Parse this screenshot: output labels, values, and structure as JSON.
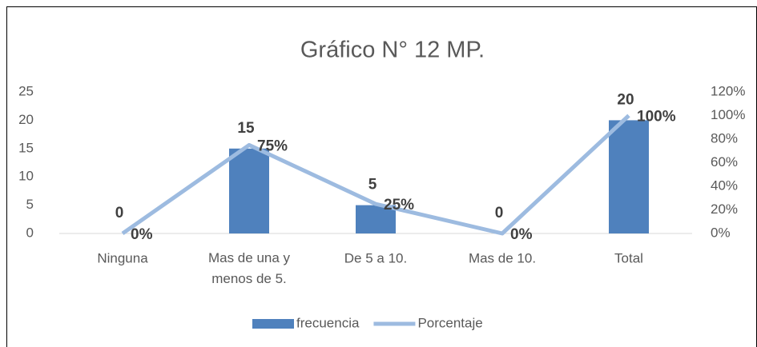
{
  "chart_data": {
    "type": "bar_line",
    "title": "Gráfico N° 12 MP.",
    "categories": [
      "Ninguna",
      "Mas de una y menos de 5.",
      "De 5 a 10.",
      "Mas de 10.",
      "Total"
    ],
    "series": [
      {
        "name": "frecuencia",
        "type": "bar",
        "color": "#4f81bd",
        "values": [
          0,
          15,
          5,
          0,
          20
        ]
      },
      {
        "name": "Porcentaje",
        "type": "line",
        "axis": "y2",
        "color": "#9dbbe0",
        "values": [
          0,
          75,
          25,
          0,
          100
        ],
        "value_labels": [
          "0%",
          "75%",
          "25%",
          "0%",
          "100%"
        ]
      }
    ],
    "ylim": [
      0,
      25
    ],
    "yticks": [
      0,
      5,
      10,
      15,
      20,
      25
    ],
    "y2lim": [
      0,
      120
    ],
    "y2ticks": [
      {
        "value": 0,
        "label": "0%"
      },
      {
        "value": 20,
        "label": "20%"
      },
      {
        "value": 40,
        "label": "40%"
      },
      {
        "value": 60,
        "label": "60%"
      },
      {
        "value": 80,
        "label": "80%"
      },
      {
        "value": 100,
        "label": "100%"
      },
      {
        "value": 120,
        "label": "120%"
      }
    ],
    "grid": false,
    "legend": "bottom"
  }
}
